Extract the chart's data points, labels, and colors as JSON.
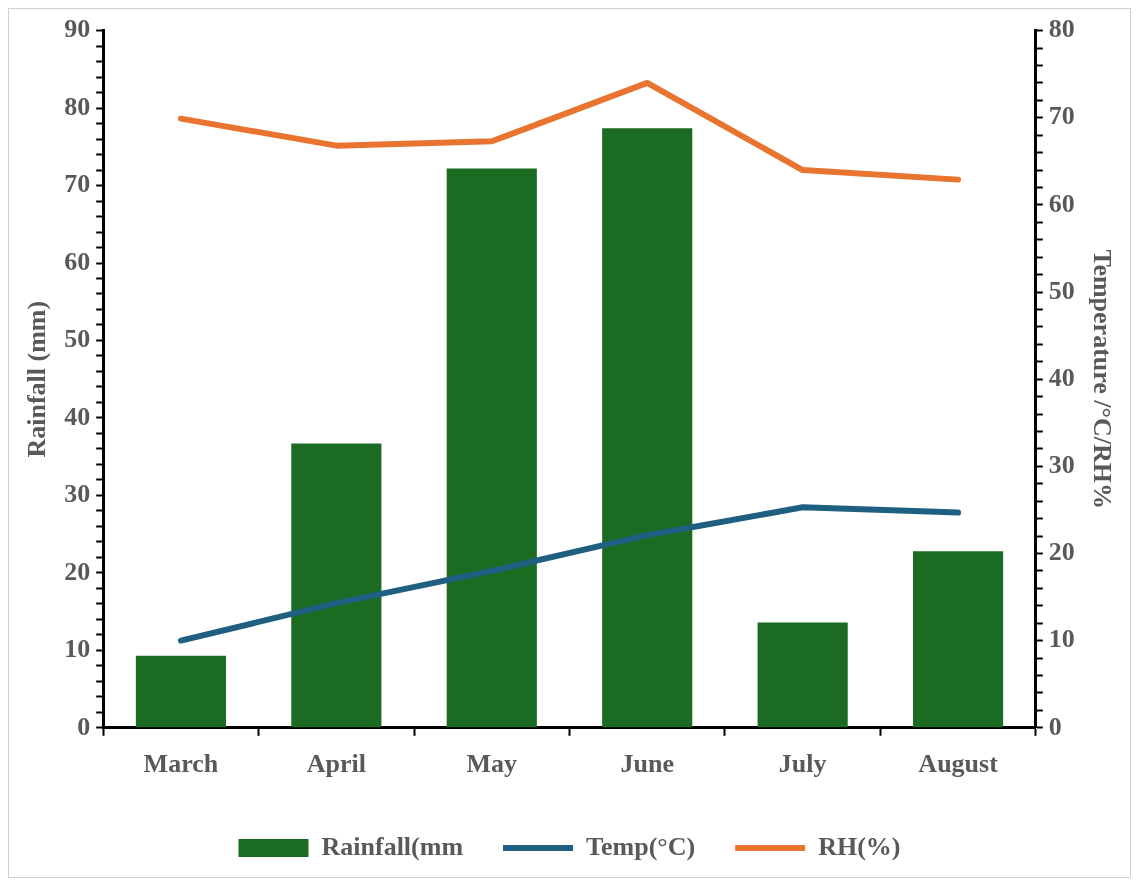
{
  "chart_data": {
    "type": "bar",
    "categories": [
      "March",
      "April",
      "May",
      "June",
      "July",
      "August"
    ],
    "ylabel": "Rainfall (mm)",
    "y2label": "Temperature /°C/RH%",
    "series": [
      {
        "name": "Rainfall(mm",
        "color": "#1c6b23",
        "values": [
          9.3,
          36.7,
          72.2,
          77.4,
          13.6,
          22.8
        ]
      },
      {
        "name": "Temp(°C)",
        "type": "line",
        "axis": "y2",
        "color": "#1f5f82",
        "values": [
          10.0,
          14.3,
          18.0,
          22.1,
          25.3,
          24.7
        ]
      },
      {
        "name": "RH(%)",
        "type": "line",
        "axis": "y2",
        "color": "#e87430",
        "values": [
          69.9,
          66.8,
          67.3,
          74.0,
          64.0,
          62.9
        ]
      }
    ],
    "ylim": [
      0,
      90
    ],
    "yticks": [
      0,
      {
        "value": 2,
        "label": null
      },
      {
        "value": 4,
        "label": null
      },
      {
        "value": 6,
        "label": null
      },
      {
        "value": 8,
        "label": null
      },
      10,
      {
        "value": 12,
        "label": null
      },
      {
        "value": 14,
        "label": null
      },
      {
        "value": 16,
        "label": null
      },
      {
        "value": 18,
        "label": null
      },
      20,
      {
        "value": 22,
        "label": null
      },
      {
        "value": 24,
        "label": null
      },
      {
        "value": 26,
        "label": null
      },
      {
        "value": 28,
        "label": null
      },
      30,
      {
        "value": 32,
        "label": null
      },
      {
        "value": 34,
        "label": null
      },
      {
        "value": 36,
        "label": null
      },
      {
        "value": 38,
        "label": null
      },
      40,
      {
        "value": 42,
        "label": null
      },
      {
        "value": 44,
        "label": null
      },
      {
        "value": 46,
        "label": null
      },
      {
        "value": 48,
        "label": null
      },
      50,
      {
        "value": 52,
        "label": null
      },
      {
        "value": 54,
        "label": null
      },
      {
        "value": 56,
        "label": null
      },
      {
        "value": 58,
        "label": null
      },
      60,
      {
        "value": 62,
        "label": null
      },
      {
        "value": 64,
        "label": null
      },
      {
        "value": 66,
        "label": null
      },
      {
        "value": 68,
        "label": null
      },
      70,
      {
        "value": 72,
        "label": null
      },
      {
        "value": 74,
        "label": null
      },
      {
        "value": 76,
        "label": null
      },
      {
        "value": 78,
        "label": null
      },
      80,
      {
        "value": 82,
        "label": null
      },
      {
        "value": 84,
        "label": null
      },
      {
        "value": 86,
        "label": null
      },
      {
        "value": 88,
        "label": null
      },
      90
    ],
    "y2lim": [
      0,
      80
    ],
    "y2ticks": [
      0,
      {
        "value": 2,
        "label": null
      },
      {
        "value": 4,
        "label": null
      },
      {
        "value": 6,
        "label": null
      },
      {
        "value": 8,
        "label": null
      },
      10,
      {
        "value": 12,
        "label": null
      },
      {
        "value": 14,
        "label": null
      },
      {
        "value": 16,
        "label": null
      },
      {
        "value": 18,
        "label": null
      },
      20,
      {
        "value": 22,
        "label": null
      },
      {
        "value": 24,
        "label": null
      },
      {
        "value": 26,
        "label": null
      },
      {
        "value": 28,
        "label": null
      },
      30,
      {
        "value": 32,
        "label": null
      },
      {
        "value": 34,
        "label": null
      },
      {
        "value": 36,
        "label": null
      },
      {
        "value": 38,
        "label": null
      },
      40,
      {
        "value": 42,
        "label": null
      },
      {
        "value": 44,
        "label": null
      },
      {
        "value": 46,
        "label": null
      },
      {
        "value": 48,
        "label": null
      },
      50,
      {
        "value": 52,
        "label": null
      },
      {
        "value": 54,
        "label": null
      },
      {
        "value": 56,
        "label": null
      },
      {
        "value": 58,
        "label": null
      },
      60,
      {
        "value": 62,
        "label": null
      },
      {
        "value": 64,
        "label": null
      },
      {
        "value": 66,
        "label": null
      },
      {
        "value": 68,
        "label": null
      },
      70,
      {
        "value": 72,
        "label": null
      },
      {
        "value": 74,
        "label": null
      },
      {
        "value": 76,
        "label": null
      },
      {
        "value": 78,
        "label": null
      },
      80
    ],
    "grid": false,
    "legend": "bottom",
    "marker": "none"
  }
}
